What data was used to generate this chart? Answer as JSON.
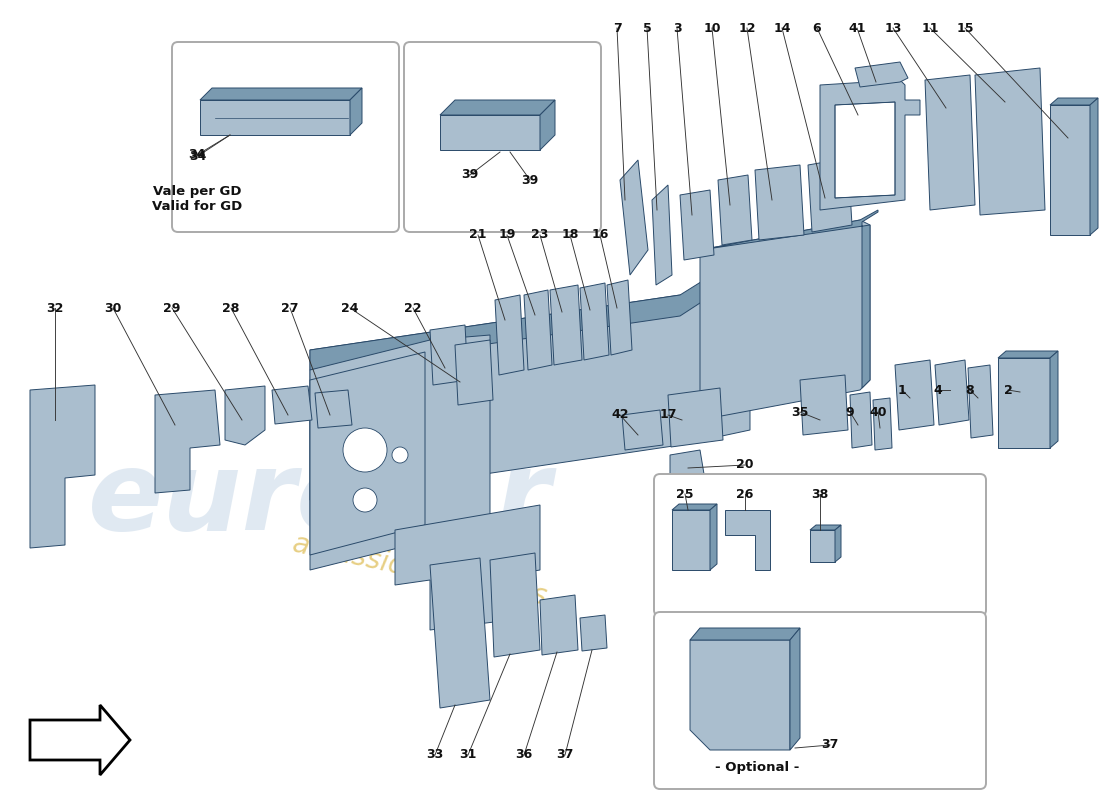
{
  "bg_color": "#ffffff",
  "part_color": "#aabece",
  "part_dark": "#7a9ab0",
  "part_edge": "#2a4a6a",
  "lw": 0.7,
  "watermark_blue": "#c8d8e8",
  "watermark_gold": "#d4a820",
  "top_labels": [
    [
      "7",
      617,
      28
    ],
    [
      "5",
      647,
      28
    ],
    [
      "3",
      677,
      28
    ],
    [
      "10",
      712,
      28
    ],
    [
      "12",
      747,
      28
    ],
    [
      "14",
      782,
      28
    ],
    [
      "6",
      817,
      28
    ],
    [
      "41",
      857,
      28
    ],
    [
      "13",
      893,
      28
    ],
    [
      "11",
      930,
      28
    ],
    [
      "15",
      965,
      28
    ]
  ],
  "left_labels": [
    [
      "32",
      55,
      308
    ],
    [
      "30",
      113,
      308
    ],
    [
      "29",
      172,
      308
    ],
    [
      "28",
      231,
      308
    ],
    [
      "27",
      290,
      308
    ],
    [
      "24",
      350,
      308
    ],
    [
      "22",
      413,
      308
    ]
  ],
  "upper_mid_labels": [
    [
      "21",
      478,
      235
    ],
    [
      "19",
      507,
      235
    ],
    [
      "23",
      540,
      235
    ],
    [
      "18",
      570,
      235
    ],
    [
      "16",
      600,
      235
    ]
  ],
  "box1_note1": "Vale per GD",
  "box1_note2": "Valid for GD",
  "optional_text": "- Optional -"
}
